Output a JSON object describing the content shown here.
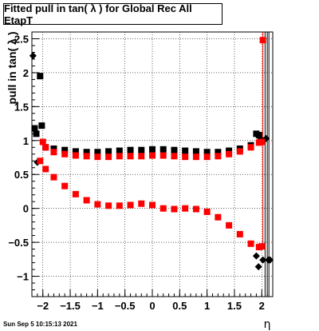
{
  "chart_data": {
    "type": "scatter",
    "title": "Fitted pull in tan( λ ) for Global Rec All EtapT",
    "xlabel": "η",
    "ylabel": "pull in tan( λ )",
    "xlim": [
      -2.2,
      2.2
    ],
    "ylim": [
      -1.3,
      2.6
    ],
    "grid": true,
    "x_ticks": [
      -2,
      -1.5,
      -1,
      -0.5,
      0,
      0.5,
      1,
      1.5,
      2
    ],
    "x_tick_labels": [
      "−2",
      "−1.5",
      "−1",
      "−0.5",
      "0",
      "0.5",
      "1",
      "1.5",
      "2"
    ],
    "y_ticks": [
      -1,
      -0.5,
      0,
      0.5,
      1,
      1.5,
      2,
      2.5
    ],
    "y_tick_labels": [
      "−1",
      "−0.5",
      "0",
      "0.5",
      "1",
      "1.5",
      "2",
      "2.5"
    ],
    "series": [
      {
        "marker": "square",
        "color": "#000000",
        "points": [
          [
            -2.15,
            1.18
          ],
          [
            -2.12,
            1.1
          ],
          [
            -2.05,
            1.95
          ],
          [
            -2.02,
            1.22
          ],
          [
            -1.95,
            0.9
          ],
          [
            -1.8,
            0.88
          ],
          [
            -1.6,
            0.86
          ],
          [
            -1.4,
            0.84
          ],
          [
            -1.2,
            0.83
          ],
          [
            -1.0,
            0.83
          ],
          [
            -0.8,
            0.84
          ],
          [
            -0.6,
            0.85
          ],
          [
            -0.4,
            0.86
          ],
          [
            -0.2,
            0.86
          ],
          [
            0.0,
            0.87
          ],
          [
            0.2,
            0.87
          ],
          [
            0.4,
            0.86
          ],
          [
            0.6,
            0.85
          ],
          [
            0.8,
            0.84
          ],
          [
            1.0,
            0.83
          ],
          [
            1.2,
            0.83
          ],
          [
            1.4,
            0.85
          ],
          [
            1.6,
            0.88
          ],
          [
            1.8,
            0.93
          ],
          [
            1.9,
            1.1
          ],
          [
            1.95,
            1.08
          ],
          [
            1.98,
            1.0
          ]
        ]
      },
      {
        "marker": "diamond",
        "color": "#000000",
        "points": [
          [
            -2.18,
            2.25
          ],
          [
            -2.1,
            0.68
          ],
          [
            1.9,
            -0.7
          ],
          [
            1.94,
            -0.86
          ],
          [
            2.02,
            -0.76
          ],
          [
            2.08,
            1.03
          ],
          [
            2.12,
            -0.76
          ],
          [
            2.15,
            -0.76
          ]
        ]
      },
      {
        "marker": "square",
        "color": "#ff0000",
        "points": [
          [
            -2.0,
            0.98
          ],
          [
            -1.95,
            0.9
          ],
          [
            -1.8,
            0.83
          ],
          [
            -1.6,
            0.8
          ],
          [
            -1.4,
            0.78
          ],
          [
            -1.2,
            0.77
          ],
          [
            -1.0,
            0.76
          ],
          [
            -0.8,
            0.76
          ],
          [
            -0.6,
            0.77
          ],
          [
            -0.4,
            0.77
          ],
          [
            -0.2,
            0.77
          ],
          [
            0.0,
            0.78
          ],
          [
            0.2,
            0.78
          ],
          [
            0.4,
            0.77
          ],
          [
            0.6,
            0.76
          ],
          [
            0.8,
            0.76
          ],
          [
            1.0,
            0.76
          ],
          [
            1.2,
            0.77
          ],
          [
            1.4,
            0.8
          ],
          [
            1.6,
            0.84
          ],
          [
            1.8,
            0.9
          ],
          [
            1.95,
            0.97
          ],
          [
            2.0,
            0.98
          ],
          [
            2.02,
            2.48
          ],
          [
            -2.05,
            0.7
          ],
          [
            -1.95,
            0.58
          ],
          [
            -1.8,
            0.46
          ],
          [
            -1.6,
            0.33
          ],
          [
            -1.4,
            0.21
          ],
          [
            -1.2,
            0.12
          ],
          [
            -1.0,
            0.06
          ],
          [
            -0.8,
            0.04
          ],
          [
            -0.6,
            0.04
          ],
          [
            -0.4,
            0.05
          ],
          [
            -0.2,
            0.07
          ],
          [
            0.0,
            0.05
          ],
          [
            0.2,
            0.0
          ],
          [
            0.4,
            -0.01
          ],
          [
            0.6,
            0.0
          ],
          [
            0.8,
            -0.01
          ],
          [
            1.0,
            -0.05
          ],
          [
            1.2,
            -0.13
          ],
          [
            1.4,
            -0.25
          ],
          [
            1.6,
            -0.38
          ],
          [
            1.8,
            -0.52
          ],
          [
            1.95,
            -0.57
          ],
          [
            2.0,
            -0.56
          ]
        ]
      }
    ]
  },
  "footer": {
    "date": "Sun Sep  5 10:15:13 2021"
  }
}
